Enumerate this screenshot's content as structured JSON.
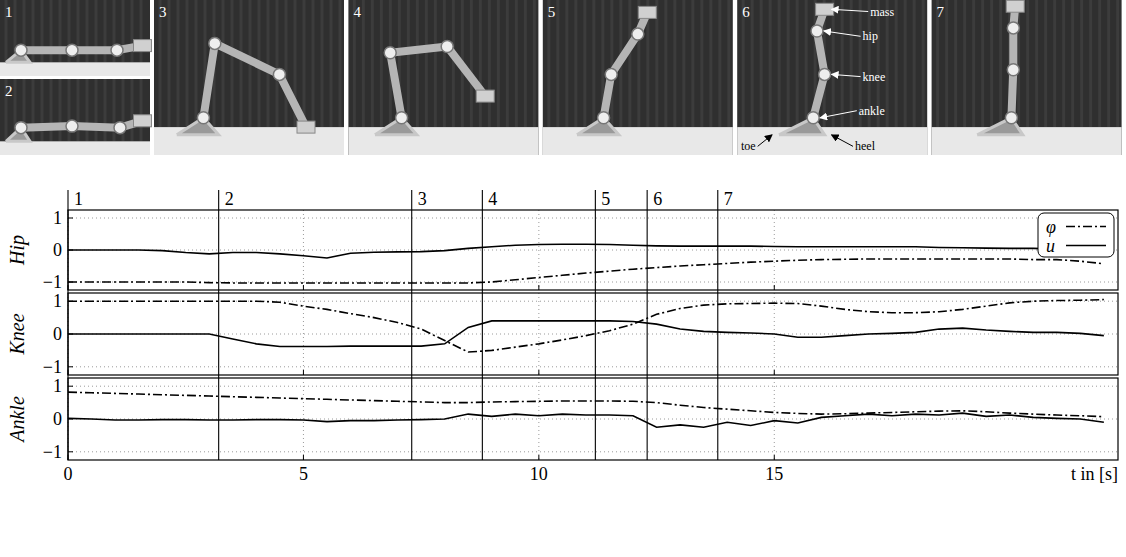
{
  "photos": {
    "frames": [
      "1",
      "2",
      "3",
      "4",
      "5",
      "6",
      "7"
    ],
    "labels": [
      "mass",
      "hip",
      "knee",
      "ankle",
      "toe",
      "heel"
    ]
  },
  "chart_data": [
    {
      "type": "line",
      "ylabel": "Hip",
      "xlim": [
        0,
        22.3
      ],
      "xticks": [
        0,
        5,
        10,
        15
      ],
      "ylim": [
        -1.25,
        1.25
      ],
      "yticks": [
        {
          "value": -1,
          "label": "−1"
        },
        0,
        1
      ],
      "grid": true,
      "legend": "upper right",
      "tick_labels": "y",
      "annotations": [
        {
          "label": "1",
          "x": 0
        },
        {
          "label": "2",
          "x": 3.2
        },
        {
          "label": "3",
          "x": 7.3
        },
        {
          "label": "4",
          "x": 8.8
        },
        {
          "label": "5",
          "x": 11.2
        },
        {
          "label": "6",
          "x": 12.3
        },
        {
          "label": "7",
          "x": 13.8
        }
      ],
      "x": [
        0,
        0.5,
        1,
        1.5,
        2,
        2.5,
        3,
        3.5,
        4,
        4.5,
        5,
        5.5,
        6,
        6.5,
        7,
        7.5,
        8,
        8.5,
        9,
        9.5,
        10,
        10.5,
        11,
        11.5,
        12,
        12.5,
        13,
        13.5,
        14,
        14.5,
        15,
        15.5,
        16,
        16.5,
        17,
        17.5,
        18,
        18.5,
        19,
        19.5,
        20,
        20.5,
        21,
        21.5,
        22
      ],
      "series": [
        {
          "name": "φ",
          "color": "#000000",
          "line_style": "dashdot",
          "values": [
            -1,
            -1,
            -1,
            -1,
            -1,
            -1,
            -1.02,
            -1.03,
            -1.03,
            -1.03,
            -1.03,
            -1.03,
            -1.03,
            -1.03,
            -1.03,
            -1.03,
            -1.03,
            -1.03,
            -1.0,
            -0.93,
            -0.86,
            -0.79,
            -0.72,
            -0.66,
            -0.6,
            -0.55,
            -0.5,
            -0.46,
            -0.42,
            -0.38,
            -0.35,
            -0.32,
            -0.3,
            -0.29,
            -0.28,
            -0.28,
            -0.28,
            -0.28,
            -0.28,
            -0.28,
            -0.28,
            -0.3,
            -0.3,
            -0.35,
            -0.43
          ]
        },
        {
          "name": "u",
          "color": "#000000",
          "line_style": "solid",
          "values": [
            0,
            0,
            0,
            0,
            -0.02,
            -0.08,
            -0.12,
            -0.08,
            -0.08,
            -0.12,
            -0.18,
            -0.25,
            -0.1,
            -0.07,
            -0.06,
            -0.05,
            -0.02,
            0.05,
            0.1,
            0.15,
            0.17,
            0.18,
            0.18,
            0.17,
            0.15,
            0.13,
            0.12,
            0.12,
            0.12,
            0.12,
            0.11,
            0.1,
            0.1,
            0.1,
            0.1,
            0.1,
            0.1,
            0.08,
            0.07,
            0.06,
            0.05,
            0.05,
            0.03,
            0.02,
            0
          ]
        }
      ]
    },
    {
      "type": "line",
      "ylabel": "Knee",
      "xlim": [
        0,
        22.3
      ],
      "xticks": [
        0,
        5,
        10,
        15
      ],
      "ylim": [
        -1.25,
        1.25
      ],
      "yticks": [
        {
          "value": -1,
          "label": "−1"
        },
        0,
        1
      ],
      "grid": true,
      "tick_labels": "y",
      "x": [
        0,
        0.5,
        1,
        1.5,
        2,
        2.5,
        3,
        3.5,
        4,
        4.5,
        5,
        5.5,
        6,
        6.5,
        7,
        7.5,
        8,
        8.5,
        9,
        9.5,
        10,
        10.5,
        11,
        11.5,
        12,
        12.5,
        13,
        13.5,
        14,
        14.5,
        15,
        15.5,
        16,
        16.5,
        17,
        17.5,
        18,
        18.5,
        19,
        19.5,
        20,
        20.5,
        21,
        21.5,
        22
      ],
      "series": [
        {
          "name": "φ",
          "color": "#000000",
          "line_style": "dashdot",
          "values": [
            1,
            1,
            1,
            1,
            1,
            1,
            1,
            1,
            1,
            0.97,
            0.85,
            0.75,
            0.62,
            0.5,
            0.35,
            0.15,
            -0.2,
            -0.55,
            -0.5,
            -0.4,
            -0.3,
            -0.18,
            -0.05,
            0.1,
            0.3,
            0.6,
            0.78,
            0.88,
            0.92,
            0.93,
            0.94,
            0.93,
            0.85,
            0.75,
            0.68,
            0.65,
            0.65,
            0.68,
            0.75,
            0.85,
            0.95,
            1.0,
            1.02,
            1.03,
            1.05
          ]
        },
        {
          "name": "u",
          "color": "#000000",
          "line_style": "solid",
          "values": [
            0,
            0,
            0,
            0,
            0,
            0,
            0,
            -0.15,
            -0.3,
            -0.38,
            -0.38,
            -0.38,
            -0.37,
            -0.37,
            -0.37,
            -0.37,
            -0.3,
            0.2,
            0.4,
            0.4,
            0.4,
            0.4,
            0.4,
            0.4,
            0.38,
            0.3,
            0.15,
            0.08,
            0.05,
            0.03,
            0,
            -0.1,
            -0.1,
            -0.05,
            0,
            0.02,
            0.05,
            0.15,
            0.18,
            0.12,
            0.08,
            0.05,
            0.05,
            0.02,
            -0.05
          ]
        }
      ]
    },
    {
      "type": "line",
      "ylabel": "Ankle",
      "xlabel": "t in [s]",
      "xlim": [
        0,
        22.3
      ],
      "xticks": [
        0,
        5,
        10,
        15
      ],
      "ylim": [
        -1.25,
        1.25
      ],
      "yticks": [
        {
          "value": -1,
          "label": "−1"
        },
        0,
        1
      ],
      "grid": true,
      "tick_labels": true,
      "x": [
        0,
        0.5,
        1,
        1.5,
        2,
        2.5,
        3,
        3.5,
        4,
        4.5,
        5,
        5.5,
        6,
        6.5,
        7,
        7.5,
        8,
        8.5,
        9,
        9.5,
        10,
        10.5,
        11,
        11.5,
        12,
        12.5,
        13,
        13.5,
        14,
        14.5,
        15,
        15.5,
        16,
        16.5,
        17,
        17.5,
        18,
        18.5,
        19,
        19.5,
        20,
        20.5,
        21,
        21.5,
        22
      ],
      "series": [
        {
          "name": "φ",
          "color": "#000000",
          "line_style": "dashdot",
          "values": [
            0.82,
            0.8,
            0.78,
            0.76,
            0.74,
            0.72,
            0.7,
            0.68,
            0.66,
            0.64,
            0.62,
            0.6,
            0.58,
            0.56,
            0.54,
            0.52,
            0.5,
            0.5,
            0.52,
            0.53,
            0.54,
            0.55,
            0.55,
            0.55,
            0.54,
            0.5,
            0.42,
            0.35,
            0.3,
            0.25,
            0.2,
            0.17,
            0.15,
            0.16,
            0.18,
            0.2,
            0.22,
            0.24,
            0.25,
            0.22,
            0.18,
            0.15,
            0.12,
            0.1,
            0.07
          ]
        },
        {
          "name": "u",
          "color": "#000000",
          "line_style": "solid",
          "values": [
            0.02,
            0,
            -0.03,
            -0.03,
            -0.02,
            -0.02,
            -0.03,
            -0.03,
            -0.02,
            -0.02,
            -0.03,
            -0.08,
            -0.05,
            -0.05,
            -0.03,
            -0.02,
            0,
            0.15,
            0.08,
            0.15,
            0.1,
            0.15,
            0.12,
            0.12,
            0.1,
            -0.25,
            -0.18,
            -0.25,
            -0.1,
            -0.2,
            -0.05,
            -0.12,
            0.05,
            0.1,
            0.15,
            0.1,
            0.15,
            0.12,
            0.18,
            0.08,
            0.12,
            0.05,
            0.02,
            0,
            -0.1
          ]
        }
      ]
    }
  ]
}
